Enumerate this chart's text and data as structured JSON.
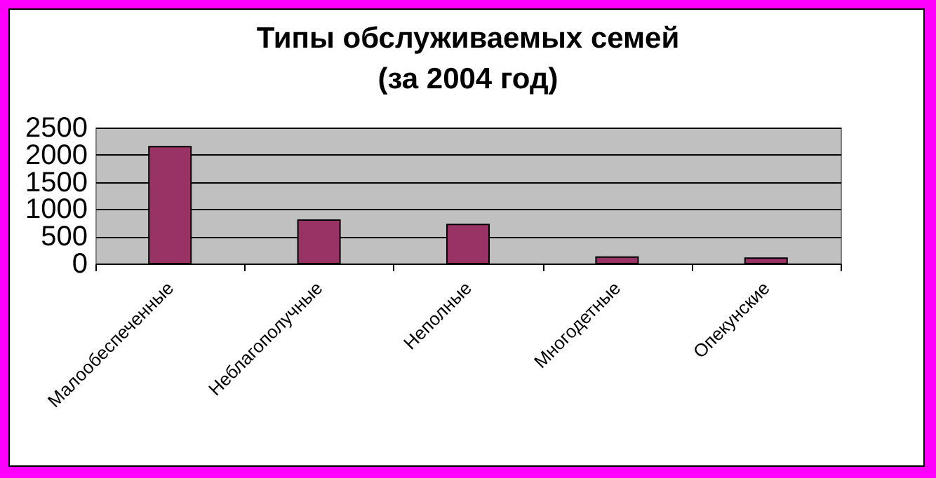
{
  "chart_data": {
    "type": "bar",
    "title": "Типы обслуживаемых семей",
    "subtitle": "(за 2004 год)",
    "categories": [
      "Малообеспеченные",
      "Неблагополучные",
      "Неполные",
      "Многодетные",
      "Опекунские"
    ],
    "values": [
      2150,
      800,
      720,
      120,
      100
    ],
    "color": "#993366",
    "ylim": [
      0,
      2500
    ],
    "yticks": [
      0,
      500,
      1000,
      1500,
      2000,
      2500
    ],
    "grid": "y"
  }
}
